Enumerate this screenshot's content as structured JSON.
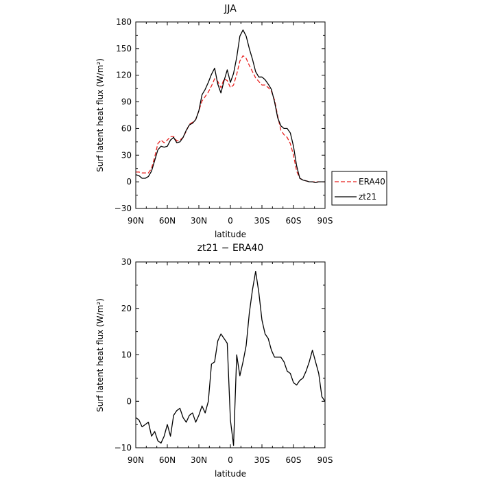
{
  "chart_data": [
    {
      "type": "line",
      "title": "JJA",
      "xlabel": "latitude",
      "ylabel": "Surf latent heat flux (W/m²)",
      "xlim": [
        90,
        -90
      ],
      "ylim": [
        -30,
        180
      ],
      "x_tick_values": [
        90,
        60,
        30,
        0,
        -30,
        -60,
        -90
      ],
      "x_tick_labels": [
        "90N",
        "60N",
        "30N",
        "0",
        "30S",
        "60S",
        "90S"
      ],
      "y_tick_values": [
        -30,
        0,
        30,
        60,
        90,
        120,
        150,
        180
      ],
      "y_tick_labels": [
        "−30",
        "0",
        "30",
        "60",
        "90",
        "120",
        "150",
        "180"
      ],
      "legend_position": "right",
      "series": [
        {
          "name": "ERA40",
          "color": "#e8201e",
          "dash": "dashed",
          "x": [
            90,
            87,
            84,
            81,
            78,
            75,
            72,
            69,
            66,
            63,
            60,
            57,
            54,
            51,
            48,
            45,
            42,
            39,
            36,
            33,
            30,
            27,
            24,
            21,
            18,
            15,
            12,
            9,
            6,
            3,
            0,
            -3,
            -6,
            -9,
            -12,
            -15,
            -18,
            -21,
            -24,
            -27,
            -30,
            -33,
            -36,
            -39,
            -42,
            -45,
            -48,
            -51,
            -54,
            -57,
            -60,
            -63,
            -66,
            -69,
            -72,
            -75,
            -78,
            -81,
            -84,
            -87,
            -90
          ],
          "values": [
            11,
            11,
            10,
            10,
            10,
            15,
            28,
            43,
            47,
            44,
            47,
            51,
            51,
            46,
            47,
            50,
            57,
            65,
            67,
            70,
            80,
            91,
            96,
            101,
            108,
            116,
            113,
            106,
            116,
            114,
            106,
            109,
            121,
            136,
            142,
            139,
            131,
            124,
            117,
            113,
            109,
            109,
            106,
            102,
            92,
            74,
            58,
            53,
            50,
            43,
            30,
            12,
            4,
            2,
            1,
            0,
            0,
            0,
            0,
            0,
            0
          ]
        },
        {
          "name": "zt21",
          "color": "#000000",
          "dash": "solid",
          "x": [
            90,
            87,
            84,
            81,
            78,
            75,
            72,
            69,
            66,
            63,
            60,
            57,
            54,
            51,
            48,
            45,
            42,
            39,
            36,
            33,
            30,
            27,
            24,
            21,
            18,
            15,
            12,
            9,
            6,
            3,
            0,
            -3,
            -6,
            -9,
            -12,
            -15,
            -18,
            -21,
            -24,
            -27,
            -30,
            -33,
            -36,
            -39,
            -42,
            -45,
            -48,
            -51,
            -54,
            -57,
            -60,
            -63,
            -66,
            -69,
            -72,
            -75,
            -78,
            -81,
            -84,
            -87,
            -90
          ],
          "values": [
            8,
            7,
            4,
            4,
            6,
            12,
            24,
            36,
            40,
            39,
            40,
            47,
            50,
            44,
            45,
            50,
            58,
            64,
            66,
            70,
            80,
            98,
            104,
            112,
            121,
            128,
            110,
            100,
            114,
            126,
            112,
            122,
            140,
            164,
            171,
            164,
            150,
            138,
            124,
            118,
            118,
            115,
            110,
            104,
            90,
            72,
            63,
            60,
            60,
            55,
            40,
            18,
            4,
            2,
            1,
            0,
            0,
            -1,
            0,
            0,
            0
          ]
        }
      ]
    },
    {
      "type": "line",
      "title": "zt21 − ERA40",
      "xlabel": "latitude",
      "ylabel": "Surf latent heat flux (W/m²)",
      "xlim": [
        90,
        -90
      ],
      "ylim": [
        -10,
        30
      ],
      "x_tick_values": [
        90,
        60,
        30,
        0,
        -30,
        -60,
        -90
      ],
      "x_tick_labels": [
        "90N",
        "60N",
        "30N",
        "0",
        "30S",
        "60S",
        "90S"
      ],
      "y_tick_values": [
        -10,
        0,
        10,
        20,
        30
      ],
      "y_tick_labels": [
        "−10",
        "0",
        "10",
        "20",
        "30"
      ],
      "series": [
        {
          "color": "#000000",
          "dash": "solid",
          "x": [
            90,
            87,
            84,
            81,
            78,
            75,
            72,
            69,
            66,
            63,
            60,
            57,
            54,
            51,
            48,
            45,
            42,
            39,
            36,
            33,
            30,
            27,
            24,
            21,
            18,
            15,
            12,
            9,
            6,
            3,
            0,
            -3,
            -6,
            -9,
            -12,
            -15,
            -18,
            -21,
            -24,
            -27,
            -30,
            -33,
            -36,
            -39,
            -42,
            -45,
            -48,
            -51,
            -54,
            -57,
            -60,
            -63,
            -66,
            -69,
            -72,
            -75,
            -78,
            -81,
            -84,
            -87,
            -90
          ],
          "values": [
            -3.5,
            -4,
            -5.5,
            -5,
            -4.5,
            -7.5,
            -6.5,
            -8.5,
            -9,
            -7.5,
            -5,
            -7.5,
            -3,
            -2,
            -1.5,
            -3.5,
            -4.5,
            -3,
            -2.5,
            -4.5,
            -3,
            -1,
            -2.5,
            0,
            8,
            8.5,
            13,
            14.5,
            13.5,
            12.5,
            -4,
            -9.5,
            10,
            5.5,
            8.5,
            12,
            19,
            24,
            28,
            23.5,
            17.5,
            14.5,
            13.5,
            11,
            9.5,
            9.5,
            9.5,
            8.5,
            6.5,
            6,
            4,
            3.5,
            4.5,
            5,
            6.5,
            8.5,
            11,
            8.5,
            6,
            1,
            0
          ]
        }
      ]
    }
  ]
}
